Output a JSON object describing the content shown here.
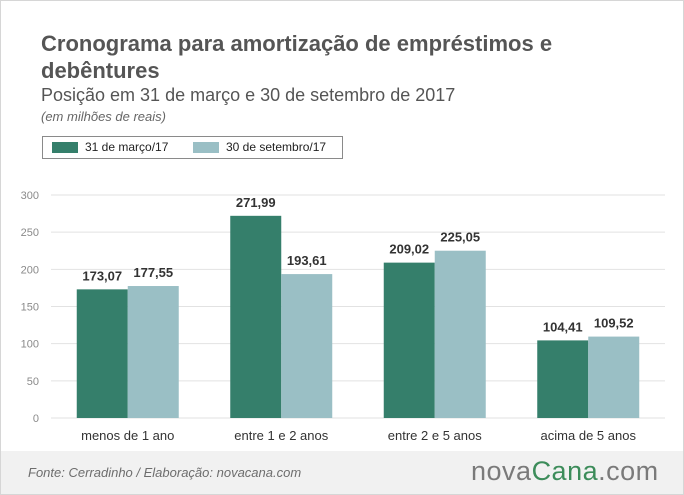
{
  "header": {
    "title": "Cronograma para amortização de empréstimos e debêntures",
    "subtitle": "Posição em 31 de março e 30 de setembro de 2017",
    "units": "(em milhões de reais)"
  },
  "footer": {
    "source": "Fonte:  Cerradinho / Elaboração: novacana.com",
    "logo_part1": "nova",
    "logo_part2": "Cana",
    "logo_part3": ".com"
  },
  "colors": {
    "series1": "#357f6b",
    "series2": "#9abfc5",
    "grid": "#e2e2e2",
    "logo_green": "#3c8c5a"
  },
  "chart_data": {
    "type": "bar",
    "title": "Cronograma para amortização de empréstimos e debêntures",
    "subtitle": "Posição em 31 de março e 30 de setembro de 2017",
    "ylabel": "(em milhões de reais)",
    "categories": [
      "menos de 1 ano",
      "entre 1 e 2 anos",
      "entre  2 e 5 anos",
      "acima de 5 anos"
    ],
    "series": [
      {
        "name": "31 de março/17",
        "values": [
          173.07,
          271.99,
          209.02,
          104.41
        ],
        "labels": [
          "173,07",
          "271,99",
          "209,02",
          "104,41"
        ]
      },
      {
        "name": "30 de setembro/17",
        "values": [
          177.55,
          193.61,
          225.05,
          109.52
        ],
        "labels": [
          "177,55",
          "193,61",
          "225,05",
          "109,52"
        ]
      }
    ],
    "ylim": [
      0,
      300
    ],
    "yticks": [
      0,
      50,
      100,
      150,
      200,
      250,
      300
    ],
    "grid": true,
    "legend": "top-left"
  }
}
